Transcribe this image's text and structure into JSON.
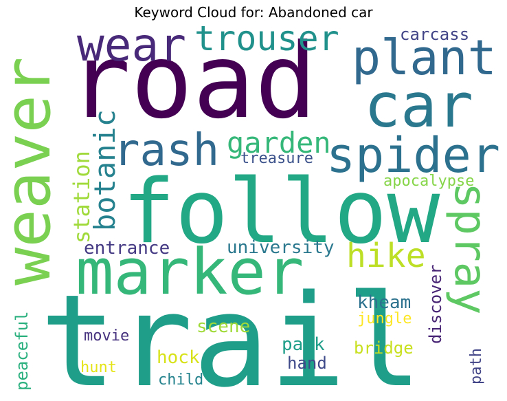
{
  "title": "Keyword Cloud for: Abandoned car",
  "words": [
    {
      "id": "road",
      "text": "road",
      "color": "#440154"
    },
    {
      "id": "trail",
      "text": "trail",
      "color": "#1f9e89"
    },
    {
      "id": "follow",
      "text": "follow",
      "color": "#22a884"
    },
    {
      "id": "weaver",
      "text": "weaver",
      "color": "#7ad151"
    },
    {
      "id": "marker",
      "text": "marker",
      "color": "#35b779"
    },
    {
      "id": "car",
      "text": "car",
      "color": "#2a788e"
    },
    {
      "id": "plant",
      "text": "plant",
      "color": "#31688e"
    },
    {
      "id": "spider",
      "text": "spider",
      "color": "#2c728e"
    },
    {
      "id": "wear",
      "text": "wear",
      "color": "#482878"
    },
    {
      "id": "trouser",
      "text": "trouser",
      "color": "#21918c"
    },
    {
      "id": "rash",
      "text": "rash",
      "color": "#31688e"
    },
    {
      "id": "spray",
      "text": "spray",
      "color": "#5ec962"
    },
    {
      "id": "garden",
      "text": "garden",
      "color": "#35b779"
    },
    {
      "id": "botanic",
      "text": "botanic",
      "color": "#26828e"
    },
    {
      "id": "hike",
      "text": "hike",
      "color": "#bddf26"
    },
    {
      "id": "station",
      "text": "station",
      "color": "#9fda3a"
    },
    {
      "id": "carcass",
      "text": "carcass",
      "color": "#414487"
    },
    {
      "id": "treasure",
      "text": "treasure",
      "color": "#3b528b"
    },
    {
      "id": "apocalypse",
      "text": "apocalypse",
      "color": "#86d549"
    },
    {
      "id": "entrance",
      "text": "entrance",
      "color": "#443983"
    },
    {
      "id": "university",
      "text": "university",
      "color": "#2a788e"
    },
    {
      "id": "kheam",
      "text": "kheam",
      "color": "#2c728e"
    },
    {
      "id": "discover",
      "text": "discover",
      "color": "#482475"
    },
    {
      "id": "jungle",
      "text": "jungle",
      "color": "#fde725"
    },
    {
      "id": "scene",
      "text": "scene",
      "color": "#a0da39"
    },
    {
      "id": "movie",
      "text": "movie",
      "color": "#46327e"
    },
    {
      "id": "park",
      "text": "park",
      "color": "#1f9e89"
    },
    {
      "id": "bridge",
      "text": "bridge",
      "color": "#c8e020"
    },
    {
      "id": "peaceful",
      "text": "peaceful",
      "color": "#2ab07f"
    },
    {
      "id": "hock",
      "text": "hock",
      "color": "#d8e219"
    },
    {
      "id": "hunt",
      "text": "hunt",
      "color": "#e5e419"
    },
    {
      "id": "hand",
      "text": "hand",
      "color": "#3e4989"
    },
    {
      "id": "path",
      "text": "path",
      "color": "#414487"
    },
    {
      "id": "child",
      "text": "child",
      "color": "#25838e"
    }
  ]
}
